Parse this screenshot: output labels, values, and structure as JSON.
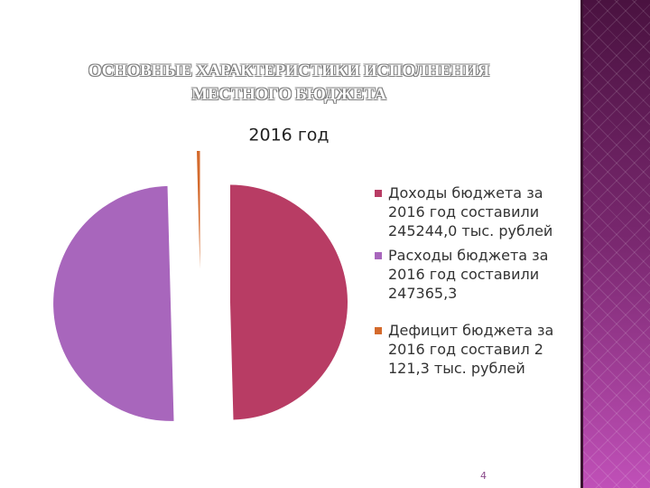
{
  "slide": {
    "title_lines": [
      "ОСНОВНЫЕ ХАРАКТЕРИСТИКИ ИСПОЛНЕНИЯ",
      "МЕСТНОГО  БЮДЖЕТА"
    ],
    "page_number": "4"
  },
  "chart_data": {
    "type": "pie",
    "title": "2016 год",
    "categories": [
      "Доходы бюджета за 2016 год составили 245244,0 тыс. рублей",
      "Расходы бюджета за 2016 год составили 247365,3",
      "Дефицит бюджета за 2016 год составил 2 121,3 тыс. рублей"
    ],
    "values": [
      245244.0,
      247365.3,
      2121.3
    ],
    "colors": [
      "#b83c64",
      "#a866bc",
      "#d46a2c"
    ],
    "legend": "right"
  }
}
